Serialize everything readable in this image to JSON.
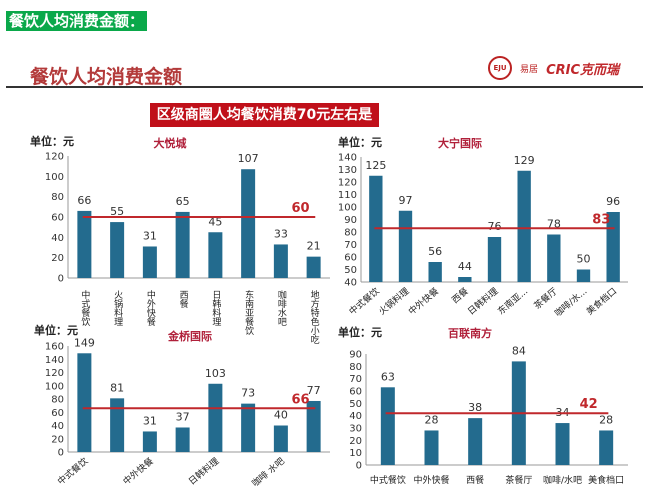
{
  "top_label": "餐饮人均消费金额：",
  "slide_title": "餐饮人均消费金额",
  "logos": {
    "eju": "EJU",
    "eju_name": "易居",
    "cric": "CRIC克而瑞"
  },
  "banner": "区级商圈人均餐饮消费70元左右是常态",
  "chart_data": [
    {
      "type": "bar",
      "title": "大悦城",
      "unit_label": "单位：元",
      "ylim": [
        0,
        120
      ],
      "yticks": [
        0,
        20,
        40,
        60,
        80,
        100,
        120
      ],
      "categories": [
        "中式餐饮",
        "火锅料理",
        "中外快餐",
        "西餐",
        "日韩料理",
        "东南亚餐饮",
        "咖啡水吧",
        "地方特色小吃"
      ],
      "values": [
        66,
        55,
        31,
        65,
        45,
        107,
        33,
        21
      ],
      "average": 60,
      "label_orientation": "vertical"
    },
    {
      "type": "bar",
      "title": "大宁国际",
      "unit_label": "单位：元",
      "ylim": [
        40,
        140
      ],
      "yticks": [
        40,
        50,
        60,
        70,
        80,
        90,
        100,
        110,
        120,
        130,
        140
      ],
      "categories": [
        "中式餐饮",
        "火锅料理",
        "中外快餐",
        "西餐",
        "日韩料理",
        "东南亚...",
        "茶餐厅",
        "咖啡/水...",
        "美食档口"
      ],
      "values": [
        125,
        97,
        56,
        44,
        76,
        129,
        78,
        50,
        96
      ],
      "average": 83,
      "label_orientation": "rotated"
    },
    {
      "type": "bar",
      "title": "金桥国际",
      "unit_label": "单位：元",
      "ylim": [
        0,
        160
      ],
      "yticks": [
        0,
        20,
        40,
        60,
        80,
        100,
        120,
        140,
        160
      ],
      "categories": [
        "中式餐饮",
        "",
        "中外快餐",
        "",
        "日韩料理",
        "",
        "咖啡 水吧",
        ""
      ],
      "values": [
        149,
        81,
        31,
        37,
        103,
        73,
        40,
        77
      ],
      "average": 66,
      "label_orientation": "rotated"
    },
    {
      "type": "bar",
      "title": "百联南方",
      "unit_label": "单位：元",
      "ylim": [
        0,
        90
      ],
      "yticks": [
        0,
        10,
        20,
        30,
        40,
        50,
        60,
        70,
        80,
        90
      ],
      "categories": [
        "中式餐饮",
        "中外快餐",
        "西餐",
        "茶餐厅",
        "咖啡/水吧",
        "美食档口"
      ],
      "values": [
        63,
        28,
        38,
        84,
        34,
        28
      ],
      "average": 42,
      "label_orientation": "horizontal"
    }
  ],
  "colors": {
    "bar": "#236b8e",
    "avg_line": "#c0282c",
    "title": "#b0203a"
  }
}
